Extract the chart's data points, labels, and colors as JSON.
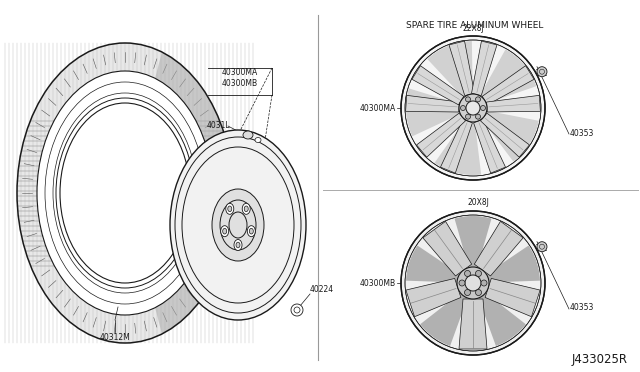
{
  "bg_color": "#ffffff",
  "line_color": "#1a1a1a",
  "title_text": "SPARE TIRE ALUMINUM WHEEL",
  "label_22xbj": "22X8J",
  "label_20xbj": "20X8J",
  "label_40300ma_top": "40300MA",
  "label_40300mb_top": "40300MB",
  "label_4031l": "4031L",
  "label_40312m": "40312M",
  "label_40224": "40224",
  "label_40300ma_wheel": "40300MA",
  "label_40300mb_wheel": "40300MB",
  "label_40353_top": "40353",
  "label_40353_bot": "40353",
  "label_j433025r": "J433025R",
  "font_size_title": 6.5,
  "font_size_label": 5.5,
  "font_size_large": 8.5
}
